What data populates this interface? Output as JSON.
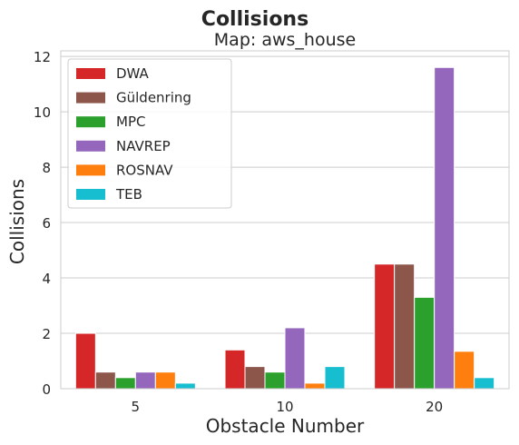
{
  "chart_data": {
    "type": "bar",
    "title": "Collisions",
    "subtitle": "Map: aws_house",
    "xlabel": "Obstacle Number",
    "ylabel": "Collisions",
    "categories": [
      "5",
      "10",
      "20"
    ],
    "ylim": [
      0,
      12.2
    ],
    "yticks": [
      0,
      2,
      4,
      6,
      8,
      10,
      12
    ],
    "grid": "horizontal",
    "legend_position": "top-left",
    "series": [
      {
        "name": "DWA",
        "color": "#d62728",
        "values": [
          2.0,
          1.4,
          4.5
        ]
      },
      {
        "name": "Güldenring",
        "color": "#8c564b",
        "values": [
          0.6,
          0.8,
          4.5
        ]
      },
      {
        "name": "MPC",
        "color": "#2ca02c",
        "values": [
          0.4,
          0.6,
          3.3
        ]
      },
      {
        "name": "NAVREP",
        "color": "#9467bd",
        "values": [
          0.6,
          2.2,
          11.6
        ]
      },
      {
        "name": "ROSNAV",
        "color": "#ff7f0e",
        "values": [
          0.6,
          0.2,
          1.35
        ]
      },
      {
        "name": "TEB",
        "color": "#17becf",
        "values": [
          0.2,
          0.8,
          0.4
        ]
      }
    ]
  }
}
